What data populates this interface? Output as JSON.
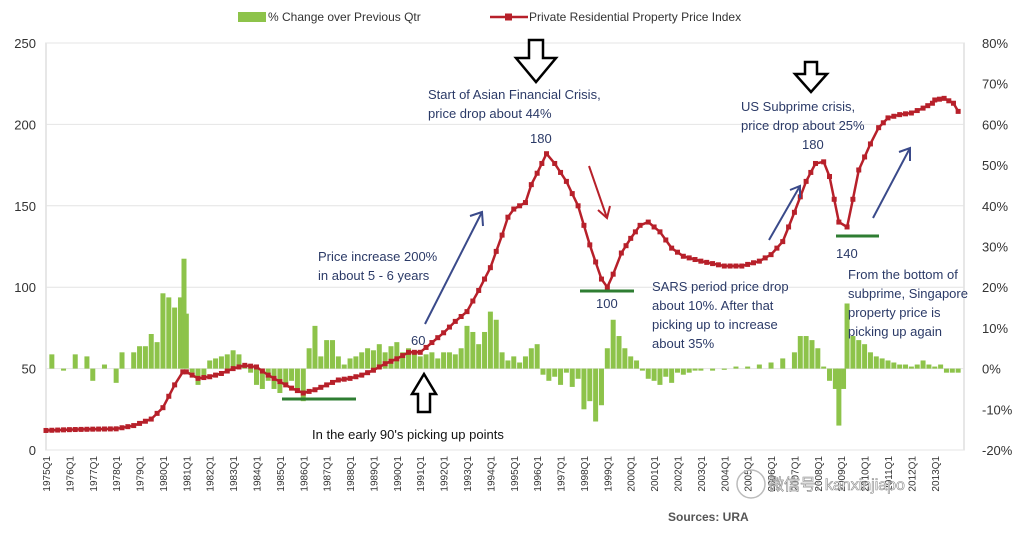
{
  "chart_data": {
    "type": "bar+line",
    "legend": {
      "position": "top",
      "entries": [
        {
          "label": "% Change over Previous Qtr",
          "color": "#8dc34a",
          "marker": "bar"
        },
        {
          "label": "Private Residential Property Price Index",
          "color": "#b7202a",
          "marker": "line-square"
        }
      ]
    },
    "y_left": {
      "min": 0,
      "max": 250,
      "ticks": [
        "0",
        "50",
        "100",
        "150",
        "200",
        "250"
      ]
    },
    "y_right": {
      "min": -20,
      "max": 80,
      "ticks": [
        "-20%",
        "-10%",
        "0%",
        "10%",
        "20%",
        "30%",
        "40%",
        "50%",
        "60%",
        "70%",
        "80%"
      ]
    },
    "x_ticks": [
      "1975Q1",
      "1976Q1",
      "1977Q1",
      "1978Q1",
      "1979Q1",
      "1980Q1",
      "1981Q1",
      "1982Q1",
      "1983Q1",
      "1984Q1",
      "1985Q1",
      "1986Q1",
      "1987Q1",
      "1988Q1",
      "1989Q1",
      "1990Q1",
      "1991Q1",
      "1992Q1",
      "1993Q1",
      "1994Q1",
      "1995Q1",
      "1996Q1",
      "1997Q1",
      "1998Q1",
      "1999Q1",
      "2000Q1",
      "2001Q1",
      "2002Q1",
      "2003Q1",
      "2004Q1",
      "2005Q1",
      "2006Q1",
      "2007Q1",
      "2008Q1",
      "2009Q1",
      "2010Q1",
      "2011Q1",
      "2012Q1",
      "2013Q1"
    ],
    "series": [
      {
        "name": "Private Residential Property Price Index",
        "axis": "left",
        "color": "#b7202a",
        "points": [
          [
            1975.0,
            12
          ],
          [
            1976.0,
            12.5
          ],
          [
            1977.0,
            12.8
          ],
          [
            1978.0,
            13
          ],
          [
            1978.75,
            15
          ],
          [
            1979.5,
            19
          ],
          [
            1980.0,
            26
          ],
          [
            1980.5,
            40
          ],
          [
            1980.85,
            48
          ],
          [
            1981.0,
            48
          ],
          [
            1981.5,
            44
          ],
          [
            1982.0,
            45
          ],
          [
            1982.5,
            47
          ],
          [
            1983.0,
            50
          ],
          [
            1983.5,
            52
          ],
          [
            1984.0,
            51
          ],
          [
            1984.5,
            46
          ],
          [
            1985.0,
            42
          ],
          [
            1985.5,
            38
          ],
          [
            1986.0,
            35
          ],
          [
            1986.5,
            37
          ],
          [
            1987.0,
            40
          ],
          [
            1987.5,
            43
          ],
          [
            1988.0,
            44
          ],
          [
            1988.5,
            46
          ],
          [
            1989.0,
            49
          ],
          [
            1989.5,
            53
          ],
          [
            1990.0,
            56
          ],
          [
            1990.5,
            60
          ],
          [
            1991.0,
            60
          ],
          [
            1991.5,
            66
          ],
          [
            1992.0,
            72
          ],
          [
            1992.5,
            79
          ],
          [
            1993.0,
            85
          ],
          [
            1993.5,
            98
          ],
          [
            1994.0,
            112
          ],
          [
            1994.5,
            132
          ],
          [
            1994.75,
            143
          ],
          [
            1995.0,
            148
          ],
          [
            1995.5,
            152
          ],
          [
            1995.75,
            163
          ],
          [
            1996.0,
            170
          ],
          [
            1996.4,
            182
          ],
          [
            1996.75,
            176
          ],
          [
            1997.25,
            165
          ],
          [
            1997.75,
            150
          ],
          [
            1998.25,
            126
          ],
          [
            1998.75,
            105
          ],
          [
            1999.0,
            100
          ],
          [
            1999.25,
            108
          ],
          [
            1999.6,
            121
          ],
          [
            2000.0,
            130
          ],
          [
            2000.4,
            138
          ],
          [
            2000.75,
            140
          ],
          [
            2001.25,
            134
          ],
          [
            2001.75,
            124
          ],
          [
            2002.25,
            119
          ],
          [
            2003.0,
            116
          ],
          [
            2004.0,
            113
          ],
          [
            2004.75,
            113
          ],
          [
            2005.5,
            116
          ],
          [
            2006.0,
            120
          ],
          [
            2006.5,
            128
          ],
          [
            2007.0,
            146
          ],
          [
            2007.5,
            165
          ],
          [
            2007.9,
            176
          ],
          [
            2008.25,
            177
          ],
          [
            2008.5,
            168
          ],
          [
            2008.9,
            140
          ],
          [
            2009.25,
            137
          ],
          [
            2009.5,
            154
          ],
          [
            2009.75,
            172
          ],
          [
            2010.25,
            188
          ],
          [
            2010.6,
            198
          ],
          [
            2011.0,
            204
          ],
          [
            2011.5,
            206
          ],
          [
            2012.0,
            207
          ],
          [
            2012.5,
            210
          ],
          [
            2012.9,
            213
          ],
          [
            2013.0,
            215
          ],
          [
            2013.4,
            216
          ],
          [
            2013.8,
            213
          ],
          [
            2014.0,
            208
          ]
        ]
      },
      {
        "name": "% Change over Previous Qtr",
        "axis": "right",
        "color": "#8dc34a",
        "points": [
          [
            1975.25,
            3.5
          ],
          [
            1975.75,
            -0.5
          ],
          [
            1976.25,
            3.5
          ],
          [
            1976.75,
            3
          ],
          [
            1977.0,
            -3
          ],
          [
            1977.5,
            1
          ],
          [
            1978.0,
            -3.5
          ],
          [
            1978.25,
            4
          ],
          [
            1978.75,
            4
          ],
          [
            1979.0,
            5.5
          ],
          [
            1979.25,
            5.5
          ],
          [
            1979.5,
            8.5
          ],
          [
            1979.75,
            6.5
          ],
          [
            1980.0,
            18.5
          ],
          [
            1980.25,
            17.5
          ],
          [
            1980.5,
            15
          ],
          [
            1980.75,
            17.5
          ],
          [
            1980.9,
            27
          ],
          [
            1981.0,
            13.5
          ],
          [
            1981.25,
            -1
          ],
          [
            1981.5,
            -4
          ],
          [
            1981.75,
            -2
          ],
          [
            1982.0,
            2
          ],
          [
            1982.25,
            2.5
          ],
          [
            1982.5,
            3
          ],
          [
            1982.75,
            3.5
          ],
          [
            1983.0,
            4.5
          ],
          [
            1983.25,
            3.5
          ],
          [
            1983.5,
            1
          ],
          [
            1983.75,
            -1
          ],
          [
            1984.0,
            -4
          ],
          [
            1984.25,
            -5
          ],
          [
            1984.5,
            -3
          ],
          [
            1984.75,
            -5
          ],
          [
            1985.0,
            -6
          ],
          [
            1985.25,
            -4
          ],
          [
            1985.5,
            -3
          ],
          [
            1985.75,
            -6
          ],
          [
            1986.0,
            -8
          ],
          [
            1986.25,
            5
          ],
          [
            1986.5,
            10.5
          ],
          [
            1986.75,
            3
          ],
          [
            1987.0,
            7
          ],
          [
            1987.25,
            7
          ],
          [
            1987.5,
            3
          ],
          [
            1987.75,
            1
          ],
          [
            1988.0,
            2.5
          ],
          [
            1988.25,
            3
          ],
          [
            1988.5,
            4
          ],
          [
            1988.75,
            5
          ],
          [
            1989.0,
            4.5
          ],
          [
            1989.25,
            6
          ],
          [
            1989.5,
            4
          ],
          [
            1989.75,
            5.5
          ],
          [
            1990.0,
            6.5
          ],
          [
            1990.25,
            4
          ],
          [
            1990.5,
            5
          ],
          [
            1990.75,
            4
          ],
          [
            1991.0,
            3
          ],
          [
            1991.25,
            3.5
          ],
          [
            1991.5,
            4
          ],
          [
            1991.75,
            2.5
          ],
          [
            1992.0,
            4
          ],
          [
            1992.25,
            4
          ],
          [
            1992.5,
            3.5
          ],
          [
            1992.75,
            5
          ],
          [
            1993.0,
            10.5
          ],
          [
            1993.25,
            9
          ],
          [
            1993.5,
            6
          ],
          [
            1993.75,
            9
          ],
          [
            1994.0,
            14
          ],
          [
            1994.25,
            12
          ],
          [
            1994.5,
            4
          ],
          [
            1994.75,
            2
          ],
          [
            1995.0,
            3
          ],
          [
            1995.25,
            1.5
          ],
          [
            1995.5,
            3
          ],
          [
            1995.75,
            5
          ],
          [
            1996.0,
            6
          ],
          [
            1996.25,
            -1.5
          ],
          [
            1996.5,
            -3
          ],
          [
            1996.75,
            -2
          ],
          [
            1997.0,
            -4
          ],
          [
            1997.25,
            -1
          ],
          [
            1997.5,
            -4.5
          ],
          [
            1997.75,
            -2.5
          ],
          [
            1998.0,
            -10
          ],
          [
            1998.25,
            -8
          ],
          [
            1998.5,
            -13
          ],
          [
            1998.75,
            -9
          ],
          [
            1999.0,
            5
          ],
          [
            1999.25,
            12
          ],
          [
            1999.5,
            8
          ],
          [
            1999.75,
            5
          ],
          [
            2000.0,
            3
          ],
          [
            2000.25,
            2
          ],
          [
            2000.5,
            -0.5
          ],
          [
            2000.75,
            -2.5
          ],
          [
            2001.0,
            -3
          ],
          [
            2001.25,
            -4
          ],
          [
            2001.5,
            -2
          ],
          [
            2001.75,
            -3.5
          ],
          [
            2002.0,
            -1
          ],
          [
            2002.25,
            -1.5
          ],
          [
            2002.5,
            -1
          ],
          [
            2002.75,
            -0.5
          ],
          [
            2003.0,
            -0.5
          ],
          [
            2003.5,
            -0.5
          ],
          [
            2004.0,
            -0.3
          ],
          [
            2004.5,
            0.5
          ],
          [
            2005.0,
            0.5
          ],
          [
            2005.5,
            1
          ],
          [
            2006.0,
            1.5
          ],
          [
            2006.5,
            2.5
          ],
          [
            2007.0,
            4
          ],
          [
            2007.25,
            8
          ],
          [
            2007.5,
            8
          ],
          [
            2007.75,
            7
          ],
          [
            2008.0,
            5
          ],
          [
            2008.25,
            0.5
          ],
          [
            2008.5,
            -3
          ],
          [
            2008.75,
            -5
          ],
          [
            2008.9,
            -14
          ],
          [
            2009.1,
            -5
          ],
          [
            2009.25,
            16
          ],
          [
            2009.5,
            8
          ],
          [
            2009.75,
            7
          ],
          [
            2010.0,
            6
          ],
          [
            2010.25,
            4
          ],
          [
            2010.5,
            3
          ],
          [
            2010.75,
            2.5
          ],
          [
            2011.0,
            2
          ],
          [
            2011.25,
            1.5
          ],
          [
            2011.5,
            1
          ],
          [
            2011.75,
            1
          ],
          [
            2012.0,
            0.5
          ],
          [
            2012.25,
            1
          ],
          [
            2012.5,
            2
          ],
          [
            2012.75,
            1
          ],
          [
            2013.0,
            0.5
          ],
          [
            2013.25,
            1
          ],
          [
            2013.5,
            -1
          ],
          [
            2013.75,
            -1
          ],
          [
            2014.0,
            -1
          ]
        ]
      }
    ],
    "annotations": [
      {
        "text_lines": [
          "Start of Asian Financial Crisis,",
          "price drop about 44%"
        ]
      },
      {
        "text_lines": [
          "US Subprime crisis,",
          "price drop about 25%"
        ]
      },
      {
        "text_lines": [
          "Price increase 200%",
          "in about 5 - 6 years"
        ]
      },
      {
        "text_lines": [
          "SARS period price drop",
          "about 10%. After that",
          "picking up to increase",
          "about 35%"
        ]
      },
      {
        "text_lines": [
          "From the bottom of",
          "subprime, Singapore",
          "property price is",
          "picking up again"
        ]
      },
      {
        "text_lines": [
          "In the early 90's picking up points"
        ]
      }
    ],
    "value_labels": [
      "180",
      "180",
      "60",
      "100",
      "140"
    ],
    "source": "Sources: URA"
  },
  "watermark": "微信号: kanxinjiapo"
}
